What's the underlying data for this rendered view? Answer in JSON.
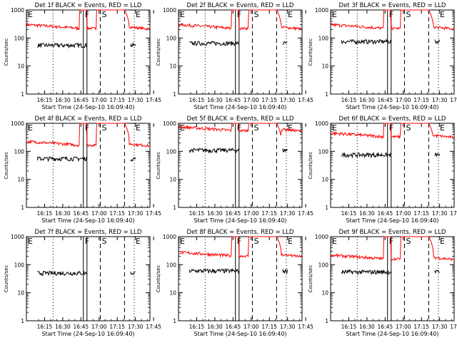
{
  "start_time_label": "Start Time (24-Sep-10 16:09:40)",
  "ylabel": "Counts/sec",
  "colors": {
    "events": "#000000",
    "lld": "#ff0000"
  },
  "x_ticks": [
    "16:15",
    "16:30",
    "16:45",
    "17:00",
    "17:15",
    "17:30",
    "17:45"
  ],
  "x_tick_minutes": [
    15,
    30,
    45,
    60,
    75,
    90,
    105
  ],
  "y_ticks": [
    "1",
    "10",
    "100",
    "1000"
  ],
  "y_tick_values": [
    1,
    10,
    100,
    1000
  ],
  "panels": [
    {
      "title": "Det 1f BLACK = Events, RED = LLD",
      "lld_level": 260,
      "events_level": 55
    },
    {
      "title": "Det 2f BLACK = Events, RED = LLD",
      "lld_level": 260,
      "events_level": 65
    },
    {
      "title": "Det 3f BLACK = Events, RED = LLD",
      "lld_level": 260,
      "events_level": 75
    },
    {
      "title": "Det 4f BLACK = Events, RED = LLD",
      "lld_level": 195,
      "events_level": 55
    },
    {
      "title": "Det 5f BLACK = Events, RED = LLD",
      "lld_level": 650,
      "events_level": 110
    },
    {
      "title": "Det 6f BLACK = Events, RED = LLD",
      "lld_level": 390,
      "events_level": 75
    },
    {
      "title": "Det 7f BLACK = Events, RED = LLD",
      "lld_level": null,
      "events_level": 50
    },
    {
      "title": "Det 8f BLACK = Events, RED = LLD",
      "lld_level": 240,
      "events_level": 60
    },
    {
      "title": "Det 9f BLACK = Events, RED = LLD",
      "lld_level": 190,
      "events_level": 55
    }
  ],
  "markers": [
    {
      "label": "E",
      "minute": 0,
      "style": "dotted"
    },
    {
      "label": "",
      "minute": 22,
      "style": "dotted"
    },
    {
      "label": "F",
      "minute": 47,
      "style": "solid"
    },
    {
      "label": "",
      "minute": 50,
      "style": "solid"
    },
    {
      "label": "S",
      "minute": 61,
      "style": "dashed"
    },
    {
      "label": "",
      "minute": 81,
      "style": "dashed"
    },
    {
      "label": "E",
      "minute": 89,
      "style": "dotted"
    }
  ],
  "chart_data": {
    "type": "line",
    "x_unit": "time",
    "y_scale": "log",
    "ylim": [
      1,
      1000
    ],
    "xlim": [
      "16:09:40",
      "17:51:40"
    ],
    "series": [
      {
        "name": "Events",
        "color": "#000000"
      },
      {
        "name": "LLD",
        "color": "#ff0000"
      }
    ]
  }
}
